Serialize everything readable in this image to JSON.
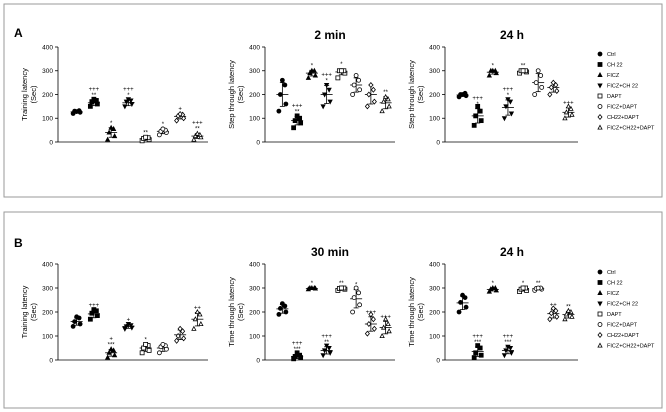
{
  "panels": [
    {
      "label": "A"
    },
    {
      "label": "B"
    }
  ],
  "legend": {
    "entries": [
      {
        "name": "Ctrl",
        "marker": "circle-filled"
      },
      {
        "name": "CH 22",
        "marker": "square-filled"
      },
      {
        "name": "FICZ",
        "marker": "triangle-filled"
      },
      {
        "name": "FICZ+CH 22",
        "marker": "triangle-down-filled"
      },
      {
        "name": "DAPT",
        "marker": "square-open"
      },
      {
        "name": "FICZ+DAPT",
        "marker": "circle-open"
      },
      {
        "name": "CH22+DAPT",
        "marker": "diamond-open"
      },
      {
        "name": "FICZ+CH22+DAPT",
        "marker": "triangle-open"
      }
    ]
  },
  "chart_data": [
    {
      "type": "scatter",
      "panel": "A",
      "title": "",
      "ylabel": "Training latency",
      "yunit": "(Sec)",
      "ylim": [
        0,
        400
      ],
      "yticks": [
        0,
        100,
        200,
        300,
        400
      ],
      "groups": [
        {
          "name": "Ctrl",
          "points": [
            120,
            125,
            130,
            132,
            128
          ],
          "mean": 127,
          "sd": 5,
          "sig": []
        },
        {
          "name": "CH 22",
          "points": [
            150,
            160,
            170,
            175,
            180
          ],
          "mean": 165,
          "sd": 12,
          "sig": [
            "+++",
            "**"
          ]
        },
        {
          "name": "FICZ",
          "points": [
            10,
            25,
            40,
            55,
            60
          ],
          "mean": 40,
          "sd": 20,
          "sig": [
            "*"
          ]
        },
        {
          "name": "FICZ+CH 22",
          "points": [
            150,
            160,
            170,
            175,
            180
          ],
          "mean": 165,
          "sd": 12,
          "sig": [
            "+++",
            "*"
          ]
        },
        {
          "name": "DAPT",
          "points": [
            5,
            10,
            15,
            18,
            20
          ],
          "mean": 14,
          "sd": 6,
          "sig": [
            "**"
          ]
        },
        {
          "name": "FICZ+DAPT",
          "points": [
            30,
            40,
            45,
            50,
            55
          ],
          "mean": 45,
          "sd": 10,
          "sig": [
            "*"
          ]
        },
        {
          "name": "CH22+DAPT",
          "points": [
            90,
            100,
            110,
            115,
            118
          ],
          "mean": 108,
          "sd": 11,
          "sig": [
            "+"
          ]
        },
        {
          "name": "FICZ+CH22+DAPT",
          "points": [
            10,
            20,
            25,
            30,
            35
          ],
          "mean": 25,
          "sd": 10,
          "sig": [
            "+++",
            "**"
          ]
        }
      ]
    },
    {
      "type": "scatter",
      "panel": "A",
      "title": "2 min",
      "ylabel": "Step through latency",
      "yunit": "(Sec)",
      "ylim": [
        0,
        400
      ],
      "yticks": [
        0,
        100,
        200,
        300,
        400
      ],
      "groups": [
        {
          "name": "Ctrl",
          "points": [
            130,
            160,
            200,
            240,
            260
          ],
          "mean": 200,
          "sd": 50,
          "sig": []
        },
        {
          "name": "CH 22",
          "points": [
            60,
            80,
            90,
            100,
            110
          ],
          "mean": 90,
          "sd": 18,
          "sig": [
            "+++",
            "**"
          ]
        },
        {
          "name": "FICZ",
          "points": [
            270,
            280,
            290,
            300,
            300
          ],
          "mean": 290,
          "sd": 12,
          "sig": [
            "*"
          ]
        },
        {
          "name": "FICZ+CH 22",
          "points": [
            150,
            170,
            200,
            220,
            240
          ],
          "mean": 200,
          "sd": 38,
          "sig": [
            "+++",
            "*"
          ]
        },
        {
          "name": "DAPT",
          "points": [
            270,
            290,
            300,
            300,
            300
          ],
          "mean": 295,
          "sd": 12,
          "sig": [
            "*"
          ]
        },
        {
          "name": "FICZ+DAPT",
          "points": [
            200,
            220,
            240,
            260,
            280
          ],
          "mean": 240,
          "sd": 30,
          "sig": []
        },
        {
          "name": "CH22+DAPT",
          "points": [
            150,
            170,
            200,
            220,
            240
          ],
          "mean": 200,
          "sd": 40,
          "sig": []
        },
        {
          "name": "FICZ+CH22+DAPT",
          "points": [
            130,
            150,
            170,
            180,
            190
          ],
          "mean": 165,
          "sd": 25,
          "sig": [
            "**"
          ]
        }
      ]
    },
    {
      "type": "scatter",
      "panel": "A",
      "title": "24 h",
      "ylabel": "Step through latency",
      "yunit": "(Sec)",
      "ylim": [
        0,
        400
      ],
      "yticks": [
        0,
        100,
        200,
        300,
        400
      ],
      "groups": [
        {
          "name": "Ctrl",
          "points": [
            190,
            195,
            200,
            205,
            200
          ],
          "mean": 198,
          "sd": 6,
          "sig": []
        },
        {
          "name": "CH 22",
          "points": [
            70,
            90,
            110,
            130,
            150
          ],
          "mean": 110,
          "sd": 30,
          "sig": [
            "+++",
            "*"
          ]
        },
        {
          "name": "FICZ",
          "points": [
            280,
            290,
            300,
            300,
            300
          ],
          "mean": 294,
          "sd": 8,
          "sig": [
            "*"
          ]
        },
        {
          "name": "FICZ+CH 22",
          "points": [
            100,
            120,
            150,
            170,
            180
          ],
          "mean": 145,
          "sd": 32,
          "sig": [
            "+++",
            "*"
          ]
        },
        {
          "name": "DAPT",
          "points": [
            290,
            295,
            300,
            300,
            300
          ],
          "mean": 297,
          "sd": 5,
          "sig": [
            "**"
          ]
        },
        {
          "name": "FICZ+DAPT",
          "points": [
            200,
            230,
            250,
            280,
            300
          ],
          "mean": 250,
          "sd": 38,
          "sig": []
        },
        {
          "name": "CH22+DAPT",
          "points": [
            200,
            215,
            230,
            240,
            250
          ],
          "mean": 230,
          "sd": 20,
          "sig": []
        },
        {
          "name": "FICZ+CH22+DAPT",
          "points": [
            100,
            115,
            125,
            140,
            150
          ],
          "mean": 125,
          "sd": 20,
          "sig": [
            "+++"
          ]
        }
      ]
    },
    {
      "type": "scatter",
      "panel": "B",
      "title": "",
      "ylabel": "Training latency",
      "yunit": "(Sec)",
      "ylim": [
        0,
        400
      ],
      "yticks": [
        0,
        100,
        200,
        300,
        400
      ],
      "groups": [
        {
          "name": "Ctrl",
          "points": [
            140,
            150,
            160,
            175,
            180
          ],
          "mean": 160,
          "sd": 15,
          "sig": []
        },
        {
          "name": "CH 22",
          "points": [
            170,
            185,
            195,
            205,
            210
          ],
          "mean": 192,
          "sd": 16,
          "sig": [
            "+++"
          ]
        },
        {
          "name": "FICZ",
          "points": [
            10,
            20,
            30,
            40,
            45
          ],
          "mean": 30,
          "sd": 14,
          "sig": [
            "+",
            "***"
          ]
        },
        {
          "name": "FICZ+CH 22",
          "points": [
            130,
            135,
            140,
            145,
            150
          ],
          "mean": 140,
          "sd": 8,
          "sig": [
            "+"
          ]
        },
        {
          "name": "DAPT",
          "points": [
            30,
            40,
            50,
            60,
            65
          ],
          "mean": 50,
          "sd": 14,
          "sig": [
            "*"
          ]
        },
        {
          "name": "FICZ+DAPT",
          "points": [
            30,
            45,
            55,
            60,
            65
          ],
          "mean": 50,
          "sd": 14,
          "sig": []
        },
        {
          "name": "CH22+DAPT",
          "points": [
            80,
            90,
            100,
            120,
            130
          ],
          "mean": 105,
          "sd": 20,
          "sig": []
        },
        {
          "name": "FICZ+CH22+DAPT",
          "points": [
            130,
            150,
            170,
            190,
            200
          ],
          "mean": 170,
          "sd": 28,
          "sig": [
            "++"
          ]
        }
      ]
    },
    {
      "type": "scatter",
      "panel": "B",
      "title": "30 min",
      "ylabel": "Time through latency",
      "yunit": "(Sec)",
      "ylim": [
        0,
        400
      ],
      "yticks": [
        0,
        100,
        200,
        300,
        400
      ],
      "groups": [
        {
          "name": "Ctrl",
          "points": [
            190,
            200,
            215,
            225,
            235
          ],
          "mean": 213,
          "sd": 18,
          "sig": []
        },
        {
          "name": "CH 22",
          "points": [
            5,
            10,
            15,
            20,
            30
          ],
          "mean": 15,
          "sd": 9,
          "sig": [
            "+++",
            "***"
          ]
        },
        {
          "name": "FICZ",
          "points": [
            295,
            298,
            300,
            300,
            300
          ],
          "mean": 298,
          "sd": 3,
          "sig": [
            "*"
          ]
        },
        {
          "name": "FICZ+CH 22",
          "points": [
            20,
            30,
            40,
            50,
            60
          ],
          "mean": 40,
          "sd": 15,
          "sig": [
            "+++",
            "**"
          ]
        },
        {
          "name": "DAPT",
          "points": [
            290,
            295,
            298,
            300,
            300
          ],
          "mean": 296,
          "sd": 4,
          "sig": [
            "**"
          ]
        },
        {
          "name": "FICZ+DAPT",
          "points": [
            200,
            230,
            260,
            280,
            300
          ],
          "mean": 255,
          "sd": 38,
          "sig": [
            "*"
          ]
        },
        {
          "name": "CH22+DAPT",
          "points": [
            110,
            130,
            150,
            170,
            190
          ],
          "mean": 150,
          "sd": 30,
          "sig": [
            "+++"
          ]
        },
        {
          "name": "FICZ+CH22+DAPT",
          "points": [
            100,
            120,
            135,
            150,
            170
          ],
          "mean": 135,
          "sd": 26,
          "sig": [
            "+++"
          ]
        }
      ]
    },
    {
      "type": "scatter",
      "panel": "B",
      "title": "24 h",
      "ylabel": "Time through latency",
      "yunit": "(Sec)",
      "ylim": [
        0,
        400
      ],
      "yticks": [
        0,
        100,
        200,
        300,
        400
      ],
      "groups": [
        {
          "name": "Ctrl",
          "points": [
            200,
            220,
            240,
            260,
            270
          ],
          "mean": 238,
          "sd": 28,
          "sig": []
        },
        {
          "name": "CH 22",
          "points": [
            10,
            20,
            30,
            50,
            60
          ],
          "mean": 35,
          "sd": 20,
          "sig": [
            "+++",
            "***"
          ]
        },
        {
          "name": "FICZ",
          "points": [
            285,
            290,
            295,
            300,
            300
          ],
          "mean": 294,
          "sd": 6,
          "sig": [
            "*"
          ]
        },
        {
          "name": "FICZ+CH 22",
          "points": [
            20,
            30,
            40,
            50,
            55
          ],
          "mean": 40,
          "sd": 14,
          "sig": [
            "+++",
            "***"
          ]
        },
        {
          "name": "DAPT",
          "points": [
            285,
            290,
            295,
            300,
            300
          ],
          "mean": 294,
          "sd": 6,
          "sig": [
            "*"
          ]
        },
        {
          "name": "FICZ+DAPT",
          "points": [
            290,
            295,
            298,
            300,
            300
          ],
          "mean": 297,
          "sd": 4,
          "sig": [
            "**"
          ]
        },
        {
          "name": "CH22+DAPT",
          "points": [
            170,
            180,
            195,
            205,
            215
          ],
          "mean": 193,
          "sd": 18,
          "sig": [
            "++"
          ]
        },
        {
          "name": "FICZ+CH22+DAPT",
          "points": [
            170,
            180,
            190,
            200,
            205
          ],
          "mean": 189,
          "sd": 14,
          "sig": [
            "**"
          ]
        }
      ]
    }
  ]
}
